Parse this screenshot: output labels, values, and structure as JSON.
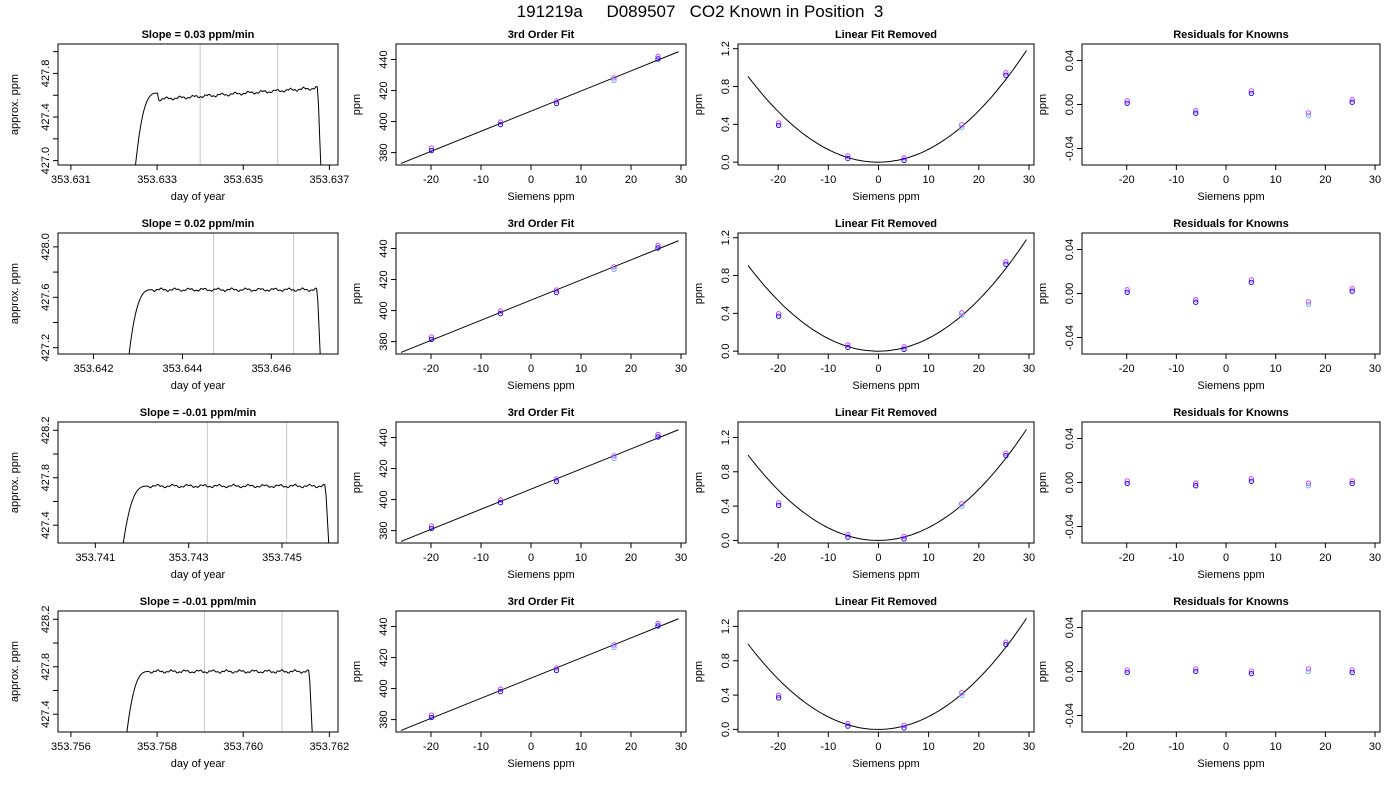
{
  "main_title": "191219a     D089507   CO2 Known in Position  3",
  "colors": {
    "line": "#000000",
    "frame": "#000000",
    "window_line": "#c8c8c8",
    "point_blue": "#0000ff",
    "point_violet": "#cc33ff",
    "point_lightblue": "#66aaff"
  },
  "chart_data": [
    {
      "row": 0,
      "col": 0,
      "type": "line",
      "title": "Slope =  0.03  ppm/min",
      "xlabel": "day of year",
      "ylabel": "approx. ppm",
      "xlim": [
        353.6307,
        353.6372
      ],
      "ylim": [
        426.96,
        428.07
      ],
      "xticks": [
        353.631,
        353.633,
        353.635,
        353.637
      ],
      "xtick_labels": [
        "353.631",
        "353.633",
        "353.635",
        "353.637"
      ],
      "yticks": [
        427.0,
        427.2,
        427.4,
        427.6,
        427.8,
        428.0
      ],
      "ytick_labels": [
        "427.0",
        "",
        "427.4",
        "",
        "427.8",
        ""
      ],
      "vlines": [
        353.634,
        353.6358
      ],
      "trace": {
        "x0": 353.6325,
        "x1": 353.6368,
        "y_start": 426.96,
        "y_plateau": 427.62,
        "y_end": 426.96
      }
    },
    {
      "row": 0,
      "col": 1,
      "type": "scatter",
      "title": "3rd Order Fit",
      "xlabel": "Siemens ppm",
      "ylabel": "ppm",
      "xlim": [
        -27,
        31
      ],
      "ylim": [
        372,
        450
      ],
      "xticks": [
        -20,
        -10,
        0,
        10,
        20,
        30
      ],
      "yticks": [
        380,
        400,
        420,
        440
      ],
      "points": [
        [
          -19.9,
          382
        ],
        [
          -6.1,
          398.7
        ],
        [
          5.1,
          412.3
        ],
        [
          16.6,
          427.2
        ],
        [
          25.4,
          441
        ]
      ],
      "line": [
        [
          -26,
          373
        ],
        [
          29.5,
          445
        ]
      ]
    },
    {
      "row": 0,
      "col": 2,
      "type": "scatter",
      "title": "Linear Fit Removed",
      "xlabel": "Siemens ppm",
      "ylabel": "ppm",
      "xlim": [
        -28,
        31
      ],
      "ylim": [
        -0.03,
        1.25
      ],
      "xticks": [
        -20,
        -10,
        0,
        10,
        20,
        30
      ],
      "yticks": [
        0,
        0.4,
        0.8,
        1.2
      ],
      "ytick_labels": [
        "0.0",
        "0.4",
        "0.8",
        "1.2"
      ],
      "points": [
        [
          -19.9,
          0.4
        ],
        [
          -6.1,
          0.05
        ],
        [
          5.1,
          0.03
        ],
        [
          16.6,
          0.38
        ],
        [
          25.4,
          0.93
        ]
      ],
      "curve": {
        "a": 0.00135,
        "b": 0.0002,
        "c": 0.0,
        "xmin": -26,
        "xmax": 29.5
      }
    },
    {
      "row": 0,
      "col": 3,
      "type": "scatter",
      "title": "Residuals for Knowns",
      "xlabel": "Siemens ppm",
      "ylabel": "ppm",
      "xlim": [
        -29,
        31
      ],
      "ylim": [
        -0.055,
        0.055
      ],
      "xticks": [
        -20,
        -10,
        0,
        10,
        20,
        30
      ],
      "yticks": [
        -0.04,
        0,
        0.04
      ],
      "ytick_labels": [
        "-0.04",
        "0.00",
        "0.04"
      ],
      "points": [
        [
          -19.9,
          0.002
        ],
        [
          -6.1,
          -0.007
        ],
        [
          5.1,
          0.011
        ],
        [
          16.6,
          -0.009
        ],
        [
          25.4,
          0.003
        ]
      ]
    },
    {
      "row": 1,
      "col": 0,
      "type": "line",
      "title": "Slope =  0.02  ppm/min",
      "xlabel": "day of year",
      "ylabel": "approx. ppm",
      "xlim": [
        353.6412,
        353.6475
      ],
      "ylim": [
        427.15,
        428.11
      ],
      "xticks": [
        353.642,
        353.644,
        353.646
      ],
      "xtick_labels": [
        "353.642",
        "353.644",
        "353.646"
      ],
      "yticks": [
        427.2,
        427.4,
        427.6,
        427.8,
        428.0
      ],
      "ytick_labels": [
        "427.2",
        "",
        "427.6",
        "",
        "428.0"
      ],
      "vlines": [
        353.6447,
        353.6465
      ],
      "trace": {
        "x0": 353.6428,
        "x1": 353.6471,
        "y_start": 427.15,
        "y_plateau": 427.66,
        "y_end": 427.15
      }
    },
    {
      "row": 1,
      "col": 1,
      "type": "scatter",
      "title": "3rd Order Fit",
      "xlabel": "Siemens ppm",
      "ylabel": "ppm",
      "xlim": [
        -27,
        31
      ],
      "ylim": [
        372,
        450
      ],
      "xticks": [
        -20,
        -10,
        0,
        10,
        20,
        30
      ],
      "yticks": [
        380,
        400,
        420,
        440
      ],
      "points": [
        [
          -19.9,
          382
        ],
        [
          -6.1,
          398.7
        ],
        [
          5.1,
          412.3
        ],
        [
          16.6,
          427.2
        ],
        [
          25.4,
          441
        ]
      ],
      "line": [
        [
          -26,
          373
        ],
        [
          29.5,
          445
        ]
      ]
    },
    {
      "row": 1,
      "col": 2,
      "type": "scatter",
      "title": "Linear Fit Removed",
      "xlabel": "Siemens ppm",
      "ylabel": "ppm",
      "xlim": [
        -28,
        31
      ],
      "ylim": [
        -0.03,
        1.25
      ],
      "xticks": [
        -20,
        -10,
        0,
        10,
        20,
        30
      ],
      "yticks": [
        0,
        0.4,
        0.8,
        1.2
      ],
      "ytick_labels": [
        "0.0",
        "0.4",
        "0.8",
        "1.2"
      ],
      "points": [
        [
          -19.9,
          0.38
        ],
        [
          -6.1,
          0.05
        ],
        [
          5.1,
          0.03
        ],
        [
          16.6,
          0.39
        ],
        [
          25.4,
          0.93
        ]
      ],
      "curve": {
        "a": 0.00135,
        "b": 0.0002,
        "c": 0.0,
        "xmin": -26,
        "xmax": 29.5
      }
    },
    {
      "row": 1,
      "col": 3,
      "type": "scatter",
      "title": "Residuals for Knowns",
      "xlabel": "Siemens ppm",
      "ylabel": "ppm",
      "xlim": [
        -29,
        31
      ],
      "ylim": [
        -0.055,
        0.055
      ],
      "xticks": [
        -20,
        -10,
        0,
        10,
        20,
        30
      ],
      "yticks": [
        -0.04,
        0,
        0.04
      ],
      "ytick_labels": [
        "-0.04",
        "0.00",
        "0.04"
      ],
      "points": [
        [
          -19.9,
          0.002
        ],
        [
          -6.1,
          -0.007
        ],
        [
          5.1,
          0.011
        ],
        [
          16.6,
          -0.009
        ],
        [
          25.4,
          0.003
        ]
      ]
    },
    {
      "row": 2,
      "col": 0,
      "type": "line",
      "title": "Slope =  -0.01  ppm/min",
      "xlabel": "day of year",
      "ylabel": "approx. ppm",
      "xlim": [
        353.7402,
        353.7462
      ],
      "ylim": [
        427.25,
        428.27
      ],
      "xticks": [
        353.741,
        353.743,
        353.745
      ],
      "xtick_labels": [
        "353.741",
        "353.743",
        "353.745"
      ],
      "yticks": [
        427.4,
        427.6,
        427.8,
        428.0,
        428.2
      ],
      "ytick_labels": [
        "427.4",
        "",
        "427.8",
        "",
        "428.2"
      ],
      "vlines": [
        353.7434,
        353.7451
      ],
      "trace": {
        "x0": 353.7416,
        "x1": 353.746,
        "y_start": 427.25,
        "y_plateau": 427.73,
        "y_end": 427.25
      }
    },
    {
      "row": 2,
      "col": 1,
      "type": "scatter",
      "title": "3rd Order Fit",
      "xlabel": "Siemens ppm",
      "ylabel": "ppm",
      "xlim": [
        -27,
        31
      ],
      "ylim": [
        372,
        450
      ],
      "xticks": [
        -20,
        -10,
        0,
        10,
        20,
        30
      ],
      "yticks": [
        380,
        400,
        420,
        440
      ],
      "points": [
        [
          -19.9,
          382
        ],
        [
          -6.1,
          398.7
        ],
        [
          5.1,
          412.3
        ],
        [
          16.6,
          427.2
        ],
        [
          25.4,
          441
        ]
      ],
      "line": [
        [
          -26,
          373
        ],
        [
          29.5,
          445
        ]
      ]
    },
    {
      "row": 2,
      "col": 2,
      "type": "scatter",
      "title": "Linear Fit Removed",
      "xlabel": "Siemens ppm",
      "ylabel": "ppm",
      "xlim": [
        -28,
        31
      ],
      "ylim": [
        -0.03,
        1.38
      ],
      "xticks": [
        -20,
        -10,
        0,
        10,
        20,
        30
      ],
      "yticks": [
        0,
        0.4,
        0.8,
        1.2
      ],
      "ytick_labels": [
        "0.0",
        "0.4",
        "0.8",
        "1.2"
      ],
      "points": [
        [
          -19.9,
          0.42
        ],
        [
          -6.1,
          0.05
        ],
        [
          5.1,
          0.03
        ],
        [
          16.6,
          0.41
        ],
        [
          25.4,
          1.0
        ]
      ],
      "curve": {
        "a": 0.00148,
        "b": 0.0002,
        "c": 0.0,
        "xmin": -26,
        "xmax": 29.5
      }
    },
    {
      "row": 2,
      "col": 3,
      "type": "scatter",
      "title": "Residuals for Knowns",
      "xlabel": "Siemens ppm",
      "ylabel": "ppm",
      "xlim": [
        -29,
        31
      ],
      "ylim": [
        -0.055,
        0.055
      ],
      "xticks": [
        -20,
        -10,
        0,
        10,
        20,
        30
      ],
      "yticks": [
        -0.04,
        0,
        0.04
      ],
      "ytick_labels": [
        "-0.04",
        "0.00",
        "0.04"
      ],
      "points": [
        [
          -19.9,
          0.0
        ],
        [
          -6.1,
          -0.002
        ],
        [
          5.1,
          0.002
        ],
        [
          16.6,
          -0.002
        ],
        [
          25.4,
          0.0
        ]
      ]
    },
    {
      "row": 3,
      "col": 0,
      "type": "line",
      "title": "Slope =  -0.01  ppm/min",
      "xlabel": "day of year",
      "ylabel": "approx. ppm",
      "xlim": [
        353.7557,
        353.7622
      ],
      "ylim": [
        427.25,
        428.27
      ],
      "xticks": [
        353.756,
        353.758,
        353.76,
        353.762
      ],
      "xtick_labels": [
        "353.756",
        "353.758",
        "353.760",
        "353.762"
      ],
      "yticks": [
        427.4,
        427.6,
        427.8,
        428.0,
        428.2
      ],
      "ytick_labels": [
        "427.4",
        "",
        "427.8",
        "",
        "428.2"
      ],
      "vlines": [
        353.7591,
        353.7609
      ],
      "trace": {
        "x0": 353.7573,
        "x1": 353.7616,
        "y_start": 427.25,
        "y_plateau": 427.76,
        "y_end": 427.25
      }
    },
    {
      "row": 3,
      "col": 1,
      "type": "scatter",
      "title": "3rd Order Fit",
      "xlabel": "Siemens ppm",
      "ylabel": "ppm",
      "xlim": [
        -27,
        31
      ],
      "ylim": [
        372,
        450
      ],
      "xticks": [
        -20,
        -10,
        0,
        10,
        20,
        30
      ],
      "yticks": [
        380,
        400,
        420,
        440
      ],
      "points": [
        [
          -19.9,
          382
        ],
        [
          -6.1,
          398.7
        ],
        [
          5.1,
          412.3
        ],
        [
          16.6,
          427.2
        ],
        [
          25.4,
          441
        ]
      ],
      "line": [
        [
          -26,
          373
        ],
        [
          29.5,
          445
        ]
      ]
    },
    {
      "row": 3,
      "col": 2,
      "type": "scatter",
      "title": "Linear Fit Removed",
      "xlabel": "Siemens ppm",
      "ylabel": "ppm",
      "xlim": [
        -28,
        31
      ],
      "ylim": [
        -0.03,
        1.38
      ],
      "xticks": [
        -20,
        -10,
        0,
        10,
        20,
        30
      ],
      "yticks": [
        0,
        0.4,
        0.8,
        1.2
      ],
      "ytick_labels": [
        "0.0",
        "0.4",
        "0.8",
        "1.2"
      ],
      "points": [
        [
          -19.9,
          0.38
        ],
        [
          -6.1,
          0.05
        ],
        [
          5.1,
          0.03
        ],
        [
          16.6,
          0.41
        ],
        [
          25.4,
          1.0
        ]
      ],
      "curve": {
        "a": 0.00148,
        "b": 0.0002,
        "c": 0.0,
        "xmin": -26,
        "xmax": 29.5
      }
    },
    {
      "row": 3,
      "col": 3,
      "type": "scatter",
      "title": "Residuals for Knowns",
      "xlabel": "Siemens ppm",
      "ylabel": "ppm",
      "xlim": [
        -29,
        31
      ],
      "ylim": [
        -0.055,
        0.055
      ],
      "xticks": [
        -20,
        -10,
        0,
        10,
        20,
        30
      ],
      "yticks": [
        -0.04,
        0,
        0.04
      ],
      "ytick_labels": [
        "-0.04",
        "0.00",
        "0.04"
      ],
      "points": [
        [
          -19.9,
          0.0
        ],
        [
          -6.1,
          0.001
        ],
        [
          5.1,
          -0.001
        ],
        [
          16.6,
          0.001
        ],
        [
          25.4,
          0.0
        ]
      ]
    }
  ]
}
